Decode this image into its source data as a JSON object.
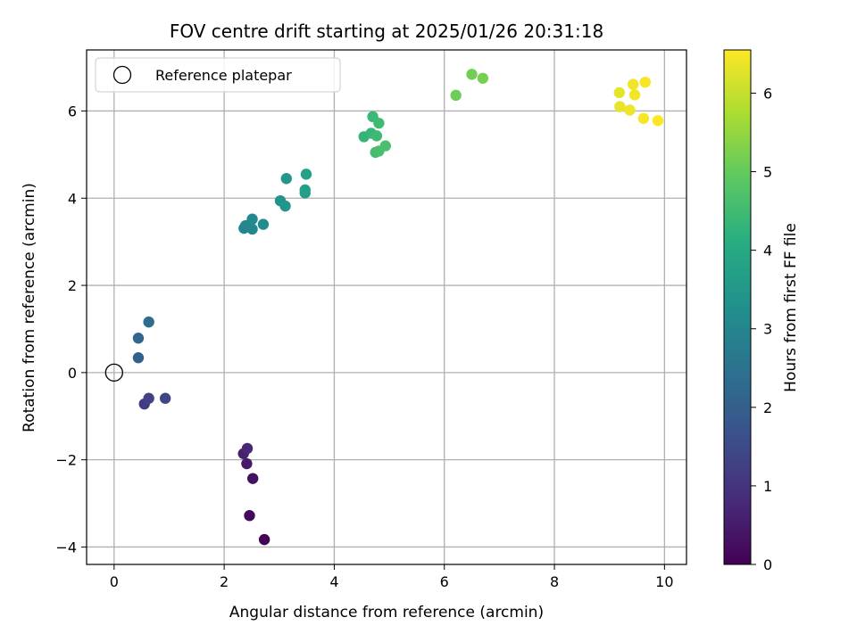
{
  "chart_data": {
    "type": "scatter",
    "title": "FOV centre drift starting at 2025/01/26 20:31:18",
    "xlabel": "Angular distance from reference (arcmin)",
    "ylabel": "Rotation from reference (arcmin)",
    "xlim": [
      -0.5,
      10.4
    ],
    "ylim": [
      -4.4,
      7.4
    ],
    "xticks": [
      0,
      2,
      4,
      6,
      8,
      10
    ],
    "yticks": [
      -4,
      -2,
      0,
      2,
      4,
      6
    ],
    "grid": true,
    "legend": {
      "placement": "top-left",
      "entries": [
        "Reference platepar"
      ]
    },
    "reference_point": {
      "x": 0,
      "y": 0
    },
    "colorbar": {
      "label": "Hours from first FF file",
      "range": [
        0,
        6.55
      ],
      "ticks": [
        0,
        1,
        2,
        3,
        4,
        5,
        6
      ],
      "colormap": "viridis"
    },
    "points": [
      {
        "x": 2.73,
        "y": -3.83,
        "t": 0.05
      },
      {
        "x": 2.46,
        "y": -3.28,
        "t": 0.15
      },
      {
        "x": 2.52,
        "y": -2.43,
        "t": 0.3
      },
      {
        "x": 2.41,
        "y": -2.09,
        "t": 0.45
      },
      {
        "x": 2.35,
        "y": -1.86,
        "t": 0.6
      },
      {
        "x": 2.42,
        "y": -1.74,
        "t": 0.75
      },
      {
        "x": 0.55,
        "y": -0.72,
        "t": 1.15
      },
      {
        "x": 0.63,
        "y": -0.59,
        "t": 1.3
      },
      {
        "x": 0.93,
        "y": -0.59,
        "t": 1.4
      },
      {
        "x": 0.44,
        "y": 0.34,
        "t": 2.05
      },
      {
        "x": 0.44,
        "y": 0.79,
        "t": 2.2
      },
      {
        "x": 0.63,
        "y": 1.16,
        "t": 2.35
      },
      {
        "x": 2.36,
        "y": 3.31,
        "t": 2.95
      },
      {
        "x": 2.39,
        "y": 3.37,
        "t": 3.0
      },
      {
        "x": 2.51,
        "y": 3.29,
        "t": 3.05
      },
      {
        "x": 2.51,
        "y": 3.52,
        "t": 3.1
      },
      {
        "x": 2.71,
        "y": 3.4,
        "t": 3.2
      },
      {
        "x": 3.02,
        "y": 3.94,
        "t": 3.4
      },
      {
        "x": 3.11,
        "y": 3.82,
        "t": 3.45
      },
      {
        "x": 3.13,
        "y": 4.45,
        "t": 3.5
      },
      {
        "x": 3.47,
        "y": 4.12,
        "t": 3.65
      },
      {
        "x": 3.47,
        "y": 4.19,
        "t": 3.7
      },
      {
        "x": 3.49,
        "y": 4.55,
        "t": 3.75
      },
      {
        "x": 4.54,
        "y": 5.41,
        "t": 4.3
      },
      {
        "x": 4.67,
        "y": 5.49,
        "t": 4.35
      },
      {
        "x": 4.7,
        "y": 5.87,
        "t": 4.4
      },
      {
        "x": 4.77,
        "y": 5.43,
        "t": 4.45
      },
      {
        "x": 4.81,
        "y": 5.72,
        "t": 4.5
      },
      {
        "x": 4.75,
        "y": 5.05,
        "t": 4.55
      },
      {
        "x": 4.81,
        "y": 5.08,
        "t": 4.6
      },
      {
        "x": 4.93,
        "y": 5.2,
        "t": 4.65
      },
      {
        "x": 6.21,
        "y": 6.36,
        "t": 5.1
      },
      {
        "x": 6.5,
        "y": 6.84,
        "t": 5.15
      },
      {
        "x": 6.7,
        "y": 6.75,
        "t": 5.2
      },
      {
        "x": 9.18,
        "y": 6.42,
        "t": 6.3
      },
      {
        "x": 9.19,
        "y": 6.1,
        "t": 6.35
      },
      {
        "x": 9.37,
        "y": 6.02,
        "t": 6.4
      },
      {
        "x": 9.43,
        "y": 6.61,
        "t": 6.42
      },
      {
        "x": 9.46,
        "y": 6.37,
        "t": 6.45
      },
      {
        "x": 9.62,
        "y": 5.83,
        "t": 6.48
      },
      {
        "x": 9.65,
        "y": 6.66,
        "t": 6.5
      },
      {
        "x": 9.88,
        "y": 5.78,
        "t": 6.55
      }
    ]
  }
}
